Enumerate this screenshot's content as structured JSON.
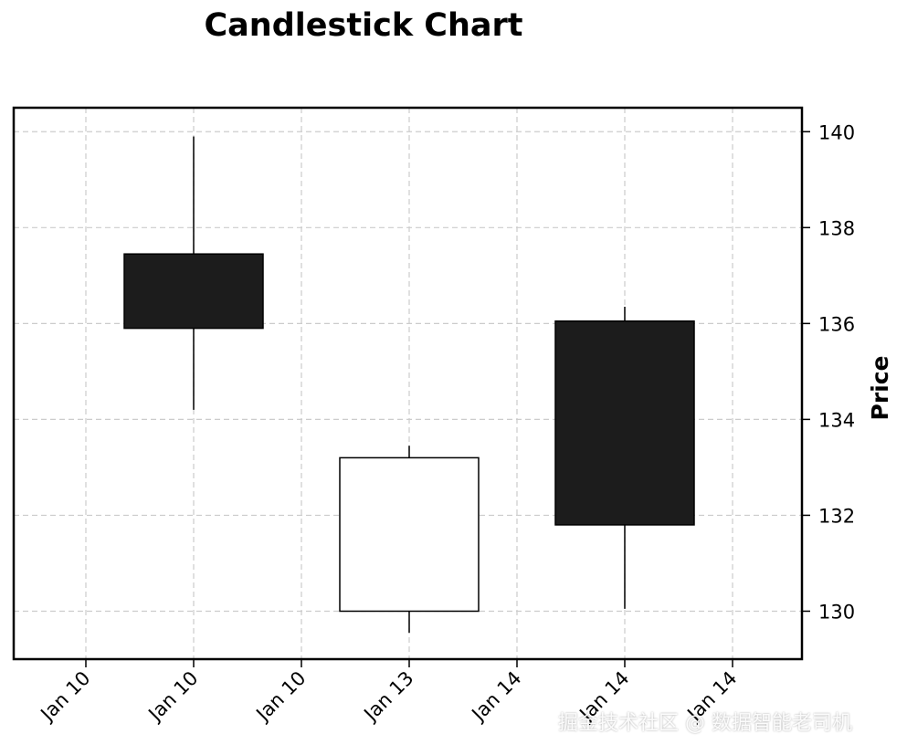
{
  "chart_data": {
    "type": "candlestick",
    "title": "Candlestick Chart",
    "xlabel": "",
    "ylabel": "Price",
    "ylim": [
      129,
      140.5
    ],
    "y_ticks": [
      130,
      132,
      134,
      136,
      138,
      140
    ],
    "x_tick_labels": [
      "Jan 10",
      "Jan 10",
      "Jan 10",
      "Jan 13",
      "Jan 14",
      "Jan 14",
      "Jan 14"
    ],
    "grid": true,
    "y_axis_side": "right",
    "candles": [
      {
        "open": 137.45,
        "high": 139.9,
        "low": 134.2,
        "close": 135.9
      },
      {
        "open": 130.0,
        "high": 133.45,
        "low": 129.55,
        "close": 133.2
      },
      {
        "open": 136.05,
        "high": 136.35,
        "low": 130.05,
        "close": 131.8
      }
    ],
    "colors": {
      "up": "#ffffff",
      "down": "#1c1c1c",
      "edge": "#000000",
      "grid": "#cccccc"
    }
  },
  "watermark": "掘金技术社区 @ 数据智能老司机"
}
